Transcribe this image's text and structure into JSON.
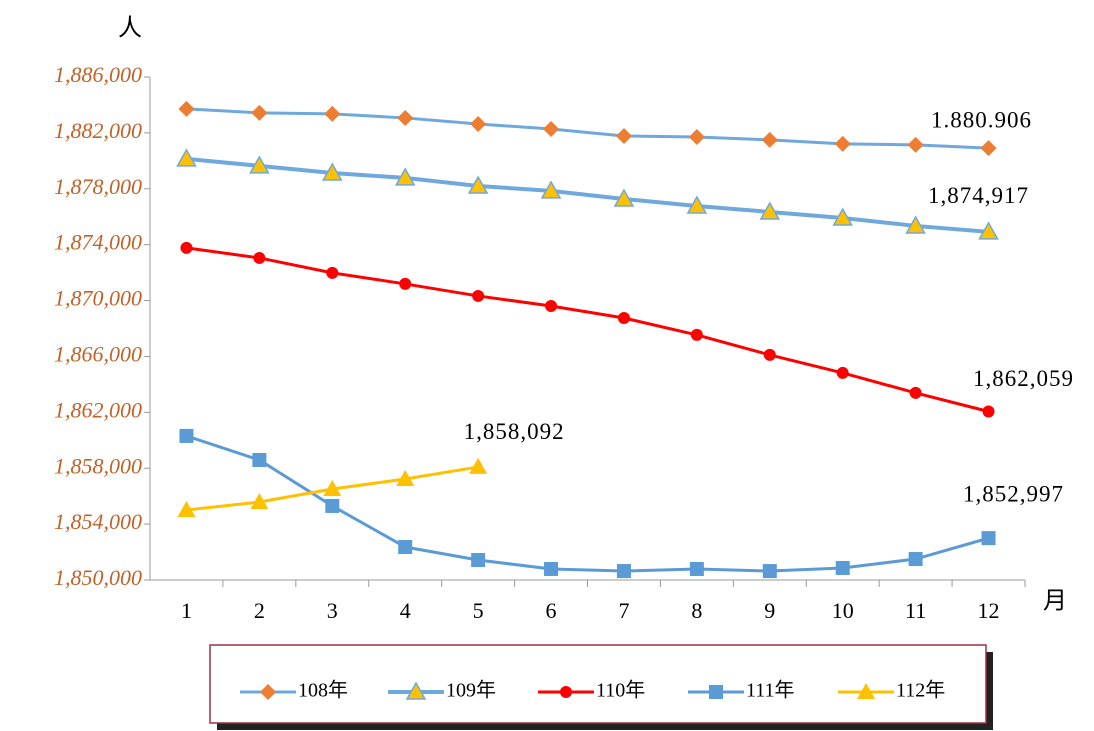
{
  "chart_data": {
    "type": "line",
    "ylabel": "人",
    "xlabel": "月",
    "categories": [
      1,
      2,
      3,
      4,
      5,
      6,
      7,
      8,
      9,
      10,
      11,
      12
    ],
    "ylim": [
      1850000,
      1886000
    ],
    "yticks": [
      {
        "value": 1850000,
        "label": "1,850,000"
      },
      {
        "value": 1854000,
        "label": "1,854,000"
      },
      {
        "value": 1858000,
        "label": "1,858,000"
      },
      {
        "value": 1862000,
        "label": "1,862,000"
      },
      {
        "value": 1866000,
        "label": "1,866,000"
      },
      {
        "value": 1870000,
        "label": "1,870,000"
      },
      {
        "value": 1874000,
        "label": "1,874,000"
      },
      {
        "value": 1878000,
        "label": "1,878,000"
      },
      {
        "value": 1882000,
        "label": "1,882,000"
      },
      {
        "value": 1886000,
        "label": "1,886,000"
      }
    ],
    "legend": "bottom",
    "series": [
      {
        "name": "108年",
        "color": "#6fa8dc",
        "marker": "diamond",
        "marker_color": "#ed7d31",
        "values": [
          1883720,
          1883430,
          1883360,
          1883070,
          1882640,
          1882280,
          1881780,
          1881710,
          1881500,
          1881210,
          1881140,
          1880906
        ],
        "value_labels": [
          null,
          null,
          null,
          null,
          null,
          null,
          null,
          null,
          null,
          null,
          null,
          "1.880.906"
        ]
      },
      {
        "name": "109年",
        "color": "#6fa8dc",
        "marker": "triangle",
        "marker_color": "#ffc000",
        "values": [
          1880140,
          1879640,
          1879130,
          1878780,
          1878200,
          1877850,
          1877270,
          1876770,
          1876340,
          1875910,
          1875340,
          1874917
        ],
        "value_labels": [
          null,
          null,
          null,
          null,
          null,
          null,
          null,
          null,
          null,
          null,
          null,
          "1,874,917"
        ]
      },
      {
        "name": "110年",
        "color": "#ff0000",
        "marker": "circle",
        "marker_color": "#ff0000",
        "values": [
          1873770,
          1873050,
          1871980,
          1871190,
          1870330,
          1869610,
          1868750,
          1867540,
          1866110,
          1864820,
          1863390,
          1862059
        ],
        "value_labels": [
          null,
          null,
          null,
          null,
          null,
          null,
          null,
          null,
          null,
          null,
          null,
          "1,862,059"
        ]
      },
      {
        "name": "111年",
        "color": "#5b9bd5",
        "marker": "square",
        "marker_color": "#5b9bd5",
        "values": [
          1860310,
          1858590,
          1855300,
          1852360,
          1851430,
          1850790,
          1850640,
          1850790,
          1850640,
          1850860,
          1851500,
          1852997
        ],
        "value_labels": [
          null,
          null,
          null,
          null,
          null,
          null,
          null,
          null,
          null,
          null,
          null,
          "1,852,997"
        ]
      },
      {
        "name": "112年",
        "color": "#ffc000",
        "marker": "triangle",
        "marker_color": "#ffc000",
        "values": [
          1855010,
          1855580,
          1856510,
          1857230,
          1858092,
          null,
          null,
          null,
          null,
          null,
          null,
          null
        ],
        "value_labels": [
          null,
          null,
          null,
          null,
          "1,858,092",
          null,
          null,
          null,
          null,
          null,
          null,
          null
        ]
      }
    ]
  }
}
